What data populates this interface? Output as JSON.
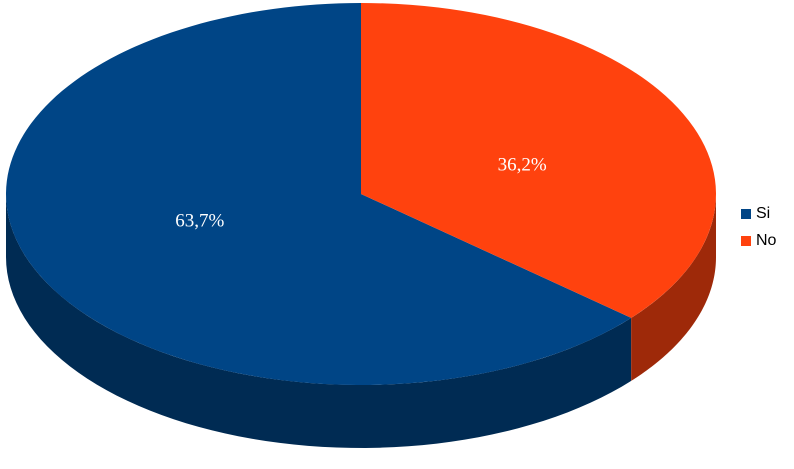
{
  "chart_data": {
    "type": "pie",
    "categories": [
      "Si",
      "No"
    ],
    "values": [
      63.7,
      36.2
    ],
    "value_labels": [
      "63,7%",
      "36,2%"
    ],
    "colors": [
      "#004586",
      "#ff420e"
    ],
    "legend": "right"
  }
}
